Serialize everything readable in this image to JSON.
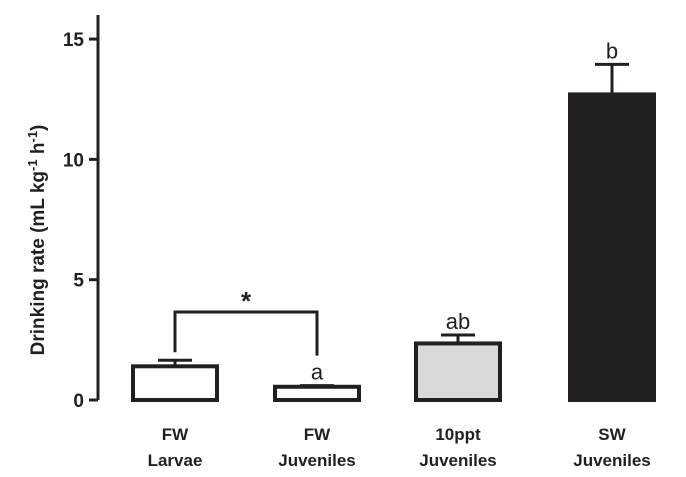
{
  "chart_data": {
    "type": "bar",
    "title": "",
    "xlabel": "",
    "ylabel": "Drinking rate (mL kg",
    "ylabel_sup1": "-1",
    "ylabel_mid": " h",
    "ylabel_sup2": "-1",
    "ylabel_end": ")",
    "ylim": [
      0,
      16
    ],
    "yticks": [
      "0",
      "5",
      "10",
      "15"
    ],
    "ytick_values": [
      0,
      5,
      10,
      15
    ],
    "categories": [
      {
        "line1": "FW",
        "line2": "Larvae"
      },
      {
        "line1": "FW",
        "line2": "Juveniles"
      },
      {
        "line1": "10ppt",
        "line2": "Juveniles"
      },
      {
        "line1": "SW",
        "line2": "Juveniles"
      }
    ],
    "values": [
      1.4,
      0.55,
      2.35,
      12.7
    ],
    "errors": [
      0.25,
      0.05,
      0.35,
      1.25
    ],
    "bar_fills": [
      "#ffffff",
      "#ffffff",
      "#d9d9d9",
      "#231f20"
    ],
    "bar_labels": [
      "",
      "a",
      "ab",
      "b"
    ],
    "significance": {
      "from": 0,
      "to": 1,
      "label": "*"
    },
    "colors": {
      "axis": "#231f20",
      "stroke": "#231f20"
    }
  }
}
